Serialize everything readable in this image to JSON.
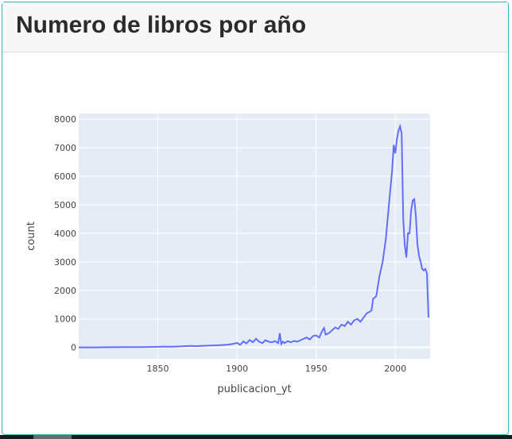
{
  "card": {
    "title": "Numero de libros por año"
  },
  "chart_data": {
    "type": "line",
    "title": "Numero de libros por año",
    "xlabel": "publicacion_yt",
    "ylabel": "count",
    "xlim": [
      1800,
      2022
    ],
    "ylim": [
      -400,
      8200
    ],
    "x_ticks": [
      1850,
      1900,
      1950,
      2000
    ],
    "y_ticks": [
      0,
      1000,
      2000,
      3000,
      4000,
      5000,
      6000,
      7000,
      8000
    ],
    "grid": true,
    "legend": "none",
    "colors": {
      "line": "#636efa",
      "plot_bg": "#e5ecf6",
      "grid": "#ffffff"
    },
    "series": [
      {
        "x": [
          1800,
          1810,
          1820,
          1830,
          1840,
          1850,
          1855,
          1860,
          1865,
          1870,
          1875,
          1880,
          1885,
          1890,
          1895,
          1898,
          1900,
          1902,
          1904,
          1906,
          1908,
          1910,
          1912,
          1914,
          1916,
          1918,
          1920,
          1922,
          1924,
          1926,
          1927,
          1928,
          1929,
          1930,
          1932,
          1934,
          1936,
          1938,
          1940,
          1942,
          1944,
          1946,
          1948,
          1950,
          1952,
          1954,
          1955,
          1956,
          1958,
          1960,
          1962,
          1964,
          1966,
          1968,
          1970,
          1972,
          1974,
          1976,
          1978,
          1980,
          1982,
          1984,
          1985,
          1986,
          1988,
          1990,
          1992,
          1994,
          1996,
          1998,
          1999,
          2000,
          2001,
          2002,
          2003,
          2004,
          2005,
          2006,
          2007,
          2008,
          2009,
          2010,
          2011,
          2012,
          2013,
          2014,
          2015,
          2016,
          2017,
          2018,
          2019,
          2020,
          2021
        ],
        "y": [
          0,
          2,
          5,
          8,
          12,
          20,
          30,
          25,
          40,
          50,
          45,
          60,
          70,
          80,
          100,
          130,
          160,
          90,
          210,
          140,
          260,
          180,
          300,
          200,
          150,
          250,
          200,
          180,
          220,
          150,
          500,
          120,
          200,
          150,
          220,
          180,
          230,
          200,
          250,
          300,
          350,
          280,
          400,
          420,
          350,
          600,
          680,
          450,
          500,
          600,
          700,
          650,
          800,
          750,
          900,
          800,
          950,
          1000,
          900,
          1050,
          1200,
          1250,
          1300,
          1700,
          1800,
          2500,
          3000,
          3800,
          5000,
          6200,
          7100,
          6800,
          7300,
          7600,
          7750,
          7500,
          4500,
          3600,
          3150,
          4000,
          4000,
          4800,
          5150,
          5200,
          4600,
          3600,
          3200,
          3000,
          2750,
          2700,
          2750,
          2600,
          1050
        ]
      }
    ]
  }
}
